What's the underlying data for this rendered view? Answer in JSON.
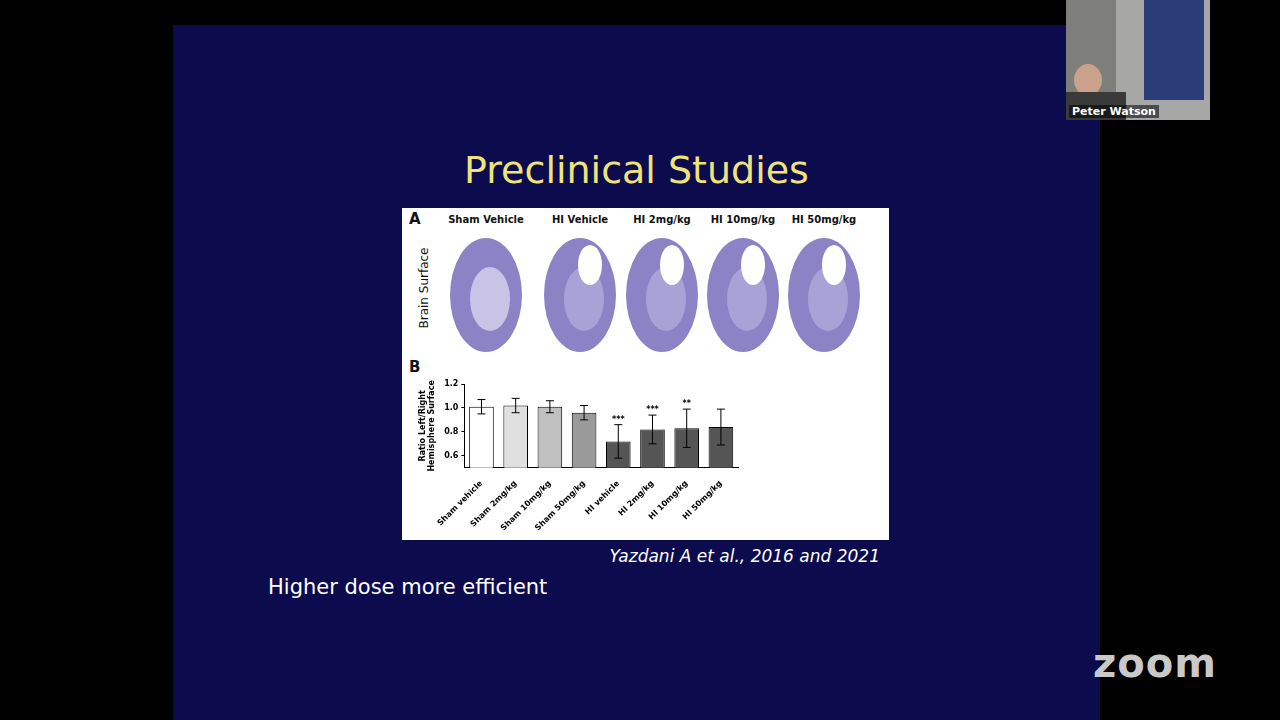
{
  "slide": {
    "title": "Preclinical Studies",
    "panel_a": {
      "letter": "A",
      "row_label": "Brain Surface",
      "columns": [
        "Sham Vehicle",
        "HI Vehicle",
        "HI 2mg/kg",
        "HI 10mg/kg",
        "HI 50mg/kg"
      ]
    },
    "panel_b": {
      "letter": "B"
    },
    "citation": "Yazdani A et al., 2016 and 2021",
    "caption": "Higher dose more efficient"
  },
  "presenter": "Peter Watson",
  "app": "zoom",
  "chart_data": {
    "type": "bar",
    "y_label": "Ratio Left/Right Hemisphere Surface",
    "categories": [
      "Sham vehicle",
      "Sham 2mg/kg",
      "Sham 10mg/kg",
      "Sham 50mg/kg",
      "HI vehicle",
      "HI 2mg/kg",
      "HI 10mg/kg",
      "HI 50mg/kg"
    ],
    "values": [
      1.01,
      1.02,
      1.01,
      0.96,
      0.72,
      0.82,
      0.83,
      0.84
    ],
    "errors": [
      0.06,
      0.06,
      0.05,
      0.06,
      0.14,
      0.12,
      0.16,
      0.15
    ],
    "colors": [
      "#ffffff",
      "#e0e0e0",
      "#c0c0c0",
      "#9a9a9a",
      "#555555",
      "#555555",
      "#555555",
      "#555555"
    ],
    "annotations": [
      {
        "category": "HI vehicle",
        "text": "***"
      },
      {
        "category": "HI 2mg/kg",
        "text": "***"
      },
      {
        "category": "HI 10mg/kg",
        "text": "**"
      }
    ],
    "ylim": [
      0.5,
      1.2
    ],
    "yticks": [
      0.6,
      0.8,
      {
        "value": 1,
        "label": "1.0"
      },
      1.2
    ],
    "grid": false
  }
}
